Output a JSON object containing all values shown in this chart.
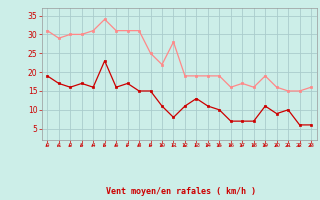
{
  "x": [
    0,
    1,
    2,
    3,
    4,
    5,
    6,
    7,
    8,
    9,
    10,
    11,
    12,
    13,
    14,
    15,
    16,
    17,
    18,
    19,
    20,
    21,
    22,
    23
  ],
  "wind_avg": [
    19,
    17,
    16,
    17,
    16,
    23,
    16,
    17,
    15,
    15,
    11,
    8,
    11,
    13,
    11,
    10,
    7,
    7,
    7,
    11,
    9,
    10,
    6,
    6
  ],
  "wind_gust": [
    31,
    29,
    30,
    30,
    31,
    34,
    31,
    31,
    31,
    25,
    22,
    28,
    19,
    19,
    19,
    19,
    16,
    17,
    16,
    19,
    16,
    15,
    15,
    16
  ],
  "bg_color": "#cceee8",
  "grid_color": "#aacccc",
  "line_avg_color": "#cc0000",
  "line_gust_color": "#ff8888",
  "marker_size": 2.0,
  "xlabel": "Vent moyen/en rafales ( km/h )",
  "xlabel_color": "#cc0000",
  "ylabel_ticks": [
    5,
    10,
    15,
    20,
    25,
    30,
    35
  ],
  "ylim": [
    2,
    37
  ],
  "xlim": [
    -0.5,
    23.5
  ],
  "tick_label_color": "#cc0000",
  "border_color": "#999999",
  "red_line_color": "#cc0000",
  "arrow_color": "#cc0000"
}
